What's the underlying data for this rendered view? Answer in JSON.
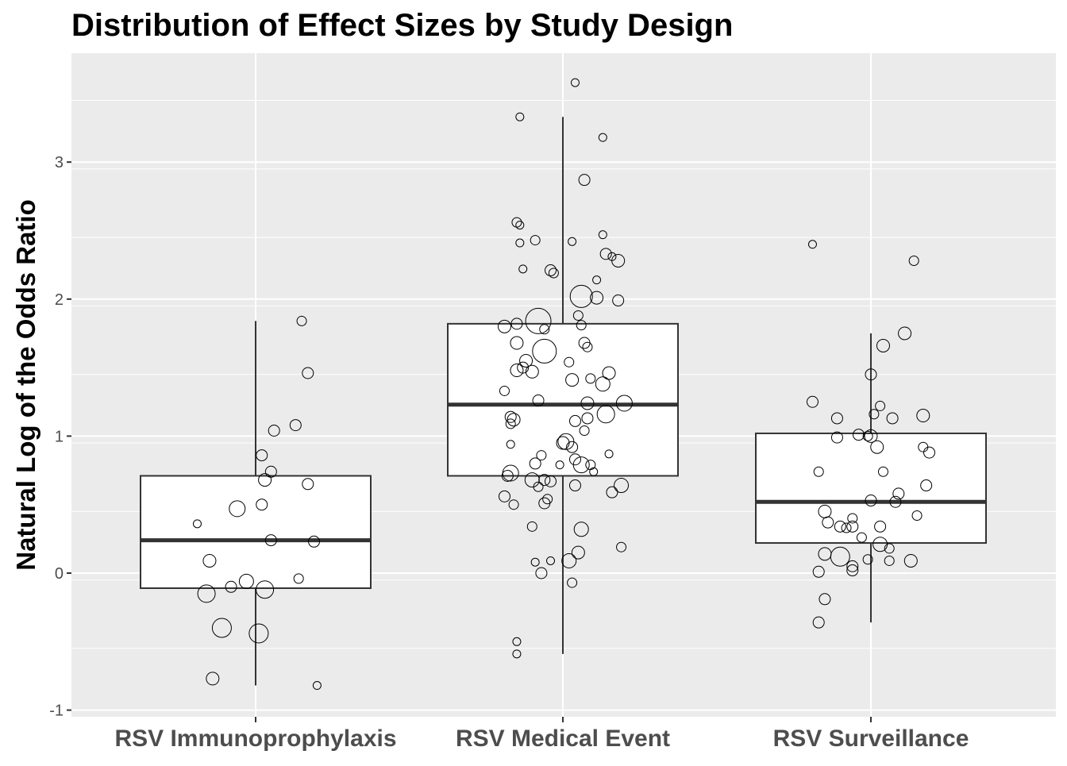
{
  "chart_data": {
    "type": "box",
    "title": "Distribution of Effect Sizes by Study Design",
    "xlabel": "",
    "ylabel": "Natural Log of the Odds Ratio",
    "ylim": [
      -1.05,
      3.8
    ],
    "yticks": [
      -1,
      0,
      1,
      2,
      3
    ],
    "grid": true,
    "legend": "none",
    "colors": {
      "panel": "#ebebeb",
      "grid": "#ffffff",
      "box_fill": "#ffffff",
      "box_line": "#333333",
      "point_stroke": "#000000"
    },
    "categories": [
      "RSV Immunoprophylaxis",
      "RSV Medical Event",
      "RSV Surveillance"
    ],
    "boxes": [
      {
        "category": "RSV Immunoprophylaxis",
        "whisker_low": -0.82,
        "q1": -0.11,
        "median": 0.24,
        "q3": 0.71,
        "whisker_high": 1.84
      },
      {
        "category": "RSV Medical Event",
        "whisker_low": -0.59,
        "q1": 0.71,
        "median": 1.23,
        "q3": 1.82,
        "whisker_high": 3.33
      },
      {
        "category": "RSV Surveillance",
        "whisker_low": -0.36,
        "q1": 0.22,
        "median": 0.52,
        "q3": 1.02,
        "whisker_high": 1.75
      }
    ],
    "points": [
      {
        "category": "RSV Immunoprophylaxis",
        "values": [
          1.84,
          1.46,
          1.08,
          1.04,
          0.86,
          0.74,
          0.68,
          0.65,
          0.5,
          0.47,
          0.36,
          0.24,
          0.23,
          0.09,
          -0.04,
          -0.06,
          -0.1,
          -0.12,
          -0.15,
          -0.4,
          -0.44,
          -0.77,
          -0.82
        ],
        "offsets": [
          0.15,
          0.17,
          0.13,
          0.06,
          0.02,
          0.05,
          0.03,
          0.17,
          0.02,
          -0.06,
          -0.19,
          0.05,
          0.19,
          -0.15,
          0.14,
          -0.03,
          -0.08,
          0.03,
          -0.16,
          -0.11,
          0.01,
          -0.14,
          0.2
        ],
        "sizes": [
          6,
          7,
          7,
          7,
          7,
          7,
          8,
          7,
          7,
          10,
          5,
          7,
          7,
          8,
          6,
          9,
          7,
          11,
          11,
          12,
          12,
          8,
          5
        ]
      },
      {
        "category": "RSV Medical Event",
        "values": [
          3.58,
          3.33,
          3.18,
          2.87,
          2.56,
          2.54,
          2.47,
          2.43,
          2.42,
          2.41,
          2.33,
          2.31,
          2.28,
          2.22,
          2.21,
          2.19,
          2.14,
          2.02,
          2.01,
          1.99,
          1.88,
          1.84,
          1.82,
          1.81,
          1.8,
          1.78,
          1.68,
          1.68,
          1.65,
          1.62,
          1.55,
          1.54,
          1.5,
          1.48,
          1.47,
          1.46,
          1.42,
          1.41,
          1.38,
          1.33,
          1.26,
          1.24,
          1.24,
          1.16,
          1.14,
          1.13,
          1.12,
          1.11,
          1.09,
          1.04,
          0.96,
          0.95,
          0.94,
          0.92,
          0.87,
          0.86,
          0.83,
          0.8,
          0.79,
          0.79,
          0.79,
          0.74,
          0.73,
          0.71,
          0.68,
          0.68,
          0.67,
          0.64,
          0.64,
          0.63,
          0.59,
          0.56,
          0.54,
          0.51,
          0.5,
          0.34,
          0.32,
          0.19,
          0.15,
          0.09,
          0.09,
          0.08,
          0.0,
          -0.07,
          -0.5,
          -0.59
        ],
        "offsets": [
          0.04,
          -0.14,
          0.13,
          0.07,
          -0.15,
          -0.14,
          0.13,
          -0.09,
          0.03,
          -0.14,
          0.14,
          0.16,
          0.18,
          -0.13,
          -0.04,
          -0.03,
          0.11,
          0.06,
          0.11,
          0.18,
          0.05,
          -0.08,
          -0.15,
          0.06,
          -0.19,
          -0.06,
          -0.15,
          0.07,
          0.08,
          -0.06,
          -0.12,
          0.02,
          -0.13,
          -0.15,
          -0.1,
          0.15,
          0.09,
          0.03,
          0.13,
          -0.19,
          -0.08,
          0.08,
          0.2,
          0.14,
          -0.17,
          0.08,
          -0.16,
          0.04,
          -0.17,
          0.07,
          0.01,
          0.0,
          -0.17,
          0.03,
          0.15,
          -0.07,
          0.04,
          -0.09,
          0.06,
          0.09,
          -0.01,
          0.1,
          -0.17,
          -0.18,
          -0.1,
          -0.06,
          -0.04,
          0.04,
          0.19,
          -0.08,
          0.16,
          -0.19,
          -0.05,
          -0.06,
          -0.16,
          -0.1,
          0.06,
          0.19,
          0.05,
          -0.04,
          0.02,
          -0.09,
          -0.07,
          0.03,
          -0.15,
          -0.15
        ],
        "sizes": [
          5,
          5,
          5,
          7,
          6,
          5,
          5,
          6,
          5,
          5,
          7,
          5,
          8,
          5,
          7,
          6,
          5,
          14,
          8,
          7,
          6,
          16,
          7,
          6,
          8,
          6,
          8,
          7,
          6,
          15,
          8,
          6,
          7,
          8,
          8,
          8,
          6,
          8,
          9,
          6,
          7,
          8,
          10,
          11,
          7,
          7,
          8,
          7,
          6,
          6,
          10,
          8,
          5,
          7,
          5,
          6,
          7,
          7,
          10,
          6,
          5,
          5,
          10,
          7,
          9,
          7,
          7,
          7,
          9,
          6,
          7,
          7,
          6,
          7,
          6,
          6,
          9,
          6,
          8,
          5,
          9,
          5,
          7,
          6,
          5,
          5
        ]
      },
      {
        "category": "RSV Surveillance",
        "values": [
          2.4,
          2.28,
          1.75,
          1.66,
          1.45,
          1.25,
          1.22,
          1.16,
          1.15,
          1.13,
          1.13,
          1.01,
          1.0,
          1.0,
          0.99,
          0.92,
          0.92,
          0.88,
          0.74,
          0.74,
          0.64,
          0.58,
          0.53,
          0.52,
          0.45,
          0.42,
          0.4,
          0.37,
          0.34,
          0.34,
          0.34,
          0.33,
          0.26,
          0.21,
          0.18,
          0.14,
          0.12,
          0.1,
          0.09,
          0.09,
          0.05,
          0.02,
          0.01,
          -0.19,
          -0.36
        ],
        "offsets": [
          -0.19,
          0.14,
          0.11,
          0.04,
          0.0,
          -0.19,
          0.03,
          0.01,
          0.17,
          -0.11,
          0.07,
          -0.04,
          0.0,
          -0.01,
          -0.11,
          0.17,
          0.02,
          0.19,
          0.04,
          -0.17,
          0.18,
          0.09,
          0.0,
          0.08,
          -0.15,
          0.15,
          -0.06,
          -0.14,
          -0.1,
          -0.06,
          0.03,
          -0.08,
          -0.03,
          0.03,
          0.06,
          -0.15,
          -0.1,
          -0.01,
          0.06,
          0.13,
          -0.06,
          -0.06,
          -0.17,
          -0.15,
          -0.17
        ],
        "sizes": [
          5,
          6,
          8,
          8,
          7,
          7,
          6,
          6,
          8,
          7,
          7,
          7,
          8,
          6,
          7,
          6,
          8,
          7,
          6,
          6,
          7,
          7,
          7,
          7,
          8,
          6,
          6,
          7,
          7,
          7,
          7,
          6,
          6,
          9,
          6,
          8,
          12,
          6,
          6,
          8,
          7,
          7,
          7,
          7,
          7
        ]
      }
    ]
  }
}
